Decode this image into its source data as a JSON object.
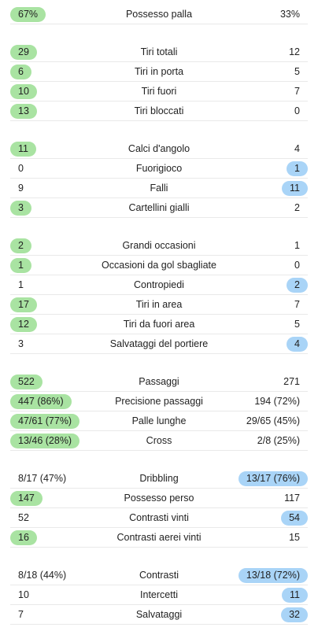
{
  "colors": {
    "home_highlight": "#a9e3a2",
    "away_highlight": "#a9d4f7",
    "divider": "#e9e9e9"
  },
  "groups": [
    {
      "rows": [
        {
          "label": "Possesso palla",
          "home": "67%",
          "away": "33%",
          "winner": "home"
        }
      ]
    },
    {
      "rows": [
        {
          "label": "Tiri totali",
          "home": "29",
          "away": "12",
          "winner": "home"
        },
        {
          "label": "Tiri in porta",
          "home": "6",
          "away": "5",
          "winner": "home"
        },
        {
          "label": "Tiri fuori",
          "home": "10",
          "away": "7",
          "winner": "home"
        },
        {
          "label": "Tiri bloccati",
          "home": "13",
          "away": "0",
          "winner": "home"
        }
      ]
    },
    {
      "rows": [
        {
          "label": "Calci d'angolo",
          "home": "11",
          "away": "4",
          "winner": "home"
        },
        {
          "label": "Fuorigioco",
          "home": "0",
          "away": "1",
          "winner": "away"
        },
        {
          "label": "Falli",
          "home": "9",
          "away": "11",
          "winner": "away"
        },
        {
          "label": "Cartellini gialli",
          "home": "3",
          "away": "2",
          "winner": "home"
        }
      ]
    },
    {
      "rows": [
        {
          "label": "Grandi occasioni",
          "home": "2",
          "away": "1",
          "winner": "home"
        },
        {
          "label": "Occasioni da gol sbagliate",
          "home": "1",
          "away": "0",
          "winner": "home"
        },
        {
          "label": "Contropiedi",
          "home": "1",
          "away": "2",
          "winner": "away"
        },
        {
          "label": "Tiri in area",
          "home": "17",
          "away": "7",
          "winner": "home"
        },
        {
          "label": "Tiri da fuori area",
          "home": "12",
          "away": "5",
          "winner": "home"
        },
        {
          "label": "Salvataggi del portiere",
          "home": "3",
          "away": "4",
          "winner": "away"
        }
      ]
    },
    {
      "rows": [
        {
          "label": "Passaggi",
          "home": "522",
          "away": "271",
          "winner": "home"
        },
        {
          "label": "Precisione passaggi",
          "home": "447 (86%)",
          "away": "194 (72%)",
          "winner": "home"
        },
        {
          "label": "Palle lunghe",
          "home": "47/61 (77%)",
          "away": "29/65 (45%)",
          "winner": "home"
        },
        {
          "label": "Cross",
          "home": "13/46 (28%)",
          "away": "2/8 (25%)",
          "winner": "home"
        }
      ]
    },
    {
      "rows": [
        {
          "label": "Dribbling",
          "home": "8/17 (47%)",
          "away": "13/17 (76%)",
          "winner": "away"
        },
        {
          "label": "Possesso perso",
          "home": "147",
          "away": "117",
          "winner": "home"
        },
        {
          "label": "Contrasti vinti",
          "home": "52",
          "away": "54",
          "winner": "away"
        },
        {
          "label": "Contrasti aerei vinti",
          "home": "16",
          "away": "15",
          "winner": "home"
        }
      ]
    },
    {
      "rows": [
        {
          "label": "Contrasti",
          "home": "8/18 (44%)",
          "away": "13/18 (72%)",
          "winner": "away"
        },
        {
          "label": "Intercetti",
          "home": "10",
          "away": "11",
          "winner": "away"
        },
        {
          "label": "Salvataggi",
          "home": "7",
          "away": "32",
          "winner": "away"
        }
      ]
    }
  ]
}
